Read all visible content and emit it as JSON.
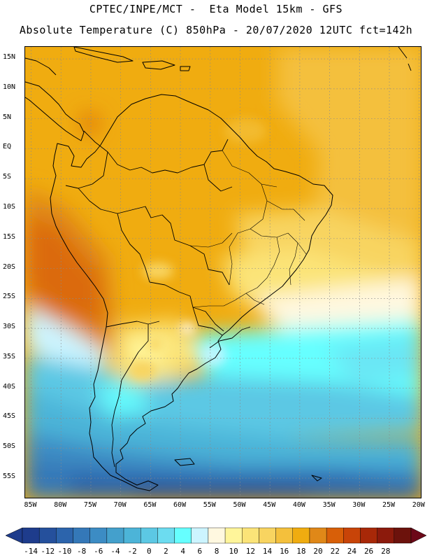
{
  "header": {
    "line1": "CPTEC/INPE/MCT -  Eta Model 15km - GFS",
    "line2": "Absolute Temperature (C) 850hPa - 20/07/2020 12UTC fct=142h"
  },
  "map": {
    "lat_labels": [
      "15N",
      "10N",
      "5N",
      "EQ",
      "5S",
      "10S",
      "15S",
      "20S",
      "25S",
      "30S",
      "35S",
      "40S",
      "45S",
      "50S",
      "55S"
    ],
    "lon_labels": [
      "85W",
      "80W",
      "75W",
      "70W",
      "65W",
      "60W",
      "55W",
      "50W",
      "45W",
      "40W",
      "35W",
      "30W",
      "25W",
      "20W"
    ],
    "lat_values": [
      15,
      10,
      5,
      0,
      -5,
      -10,
      -15,
      -20,
      -25,
      -30,
      -35,
      -40,
      -45,
      -50,
      -55
    ],
    "lon_values": [
      -85,
      -80,
      -75,
      -70,
      -65,
      -60,
      -55,
      -50,
      -45,
      -40,
      -35,
      -30,
      -25,
      -20
    ],
    "lon_range": [
      -86,
      -19.5
    ],
    "lat_range": [
      17,
      -58.5
    ],
    "gridlines": true
  },
  "colorbar": {
    "labels": [
      "-14",
      "-12",
      "-10",
      "-8",
      "-6",
      "-4",
      "-2",
      "0",
      "2",
      "4",
      "6",
      "8",
      "10",
      "12",
      "14",
      "16",
      "18",
      "20",
      "22",
      "24",
      "26",
      "28"
    ],
    "colors": [
      "#1e3c8c",
      "#25509c",
      "#2c64ac",
      "#3478b8",
      "#3c8cc4",
      "#44a0cc",
      "#4cb4d8",
      "#5cc8e4",
      "#6cdcf0",
      "#66ffff",
      "#ccf4ff",
      "#fff8e0",
      "#fff59a",
      "#fbe478",
      "#f8d460",
      "#f4c03c",
      "#f0ac10",
      "#e08818",
      "#d85f08",
      "#c84408",
      "#a82808",
      "#8c1a0c",
      "#6c120c"
    ],
    "low_color": "#1e3c8c",
    "high_color": "#6c0818"
  }
}
